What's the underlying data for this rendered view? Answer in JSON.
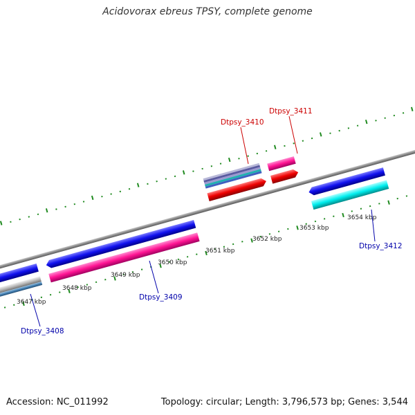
{
  "title": "Acidovorax ebreus TPSY, complete genome",
  "footer": {
    "accession": "Accession: NC_011992",
    "summary": "Topology: circular; Length: 3,796,573 bp; Genes: 3,544"
  },
  "colors": {
    "backbone": "#8a8a8a",
    "tick": "#1f8a1f",
    "forward_label": "#cc0000",
    "reverse_label": "#0000aa"
  },
  "ruler": {
    "labels": [
      "3647 kbp",
      "3648 kbp",
      "3649 kbp",
      "3650 kbp",
      "3651 kbp",
      "3652 kbp",
      "3653 kbp",
      "3654 kbp"
    ]
  },
  "genes": [
    {
      "id": "Dtpsy_3408",
      "strand": "reverse"
    },
    {
      "id": "Dtpsy_3409",
      "strand": "reverse"
    },
    {
      "id": "Dtpsy_3410",
      "strand": "forward"
    },
    {
      "id": "Dtpsy_3411",
      "strand": "forward"
    },
    {
      "id": "Dtpsy_3412",
      "strand": "reverse"
    }
  ]
}
